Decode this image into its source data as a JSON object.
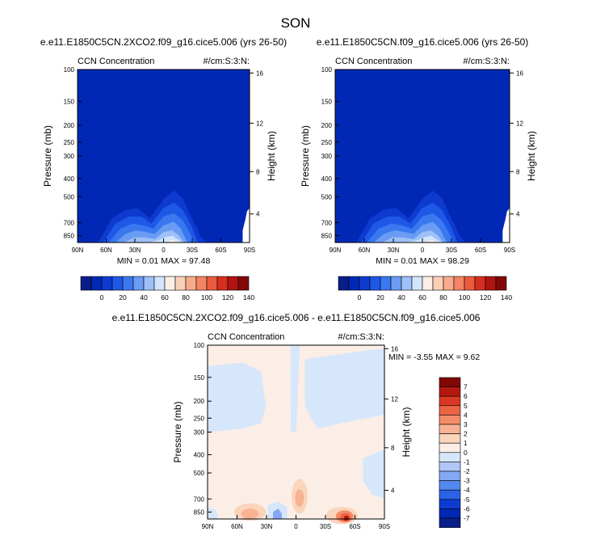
{
  "page": {
    "title": "SON"
  },
  "colors": {
    "abs_scale": [
      "#0a1e8a",
      "#0028b4",
      "#0e3ad0",
      "#1e58e6",
      "#3a78f0",
      "#6a9cf4",
      "#9ec0f8",
      "#d2e4fb",
      "#fbeee6",
      "#fbd0b8",
      "#f8ab8c",
      "#f48464",
      "#ec5a3e",
      "#d62e20",
      "#b01410",
      "#820808"
    ],
    "diff_scale": [
      "#0a1e8a",
      "#0028b4",
      "#0e3ad0",
      "#2a62e8",
      "#5488f0",
      "#84a8f4",
      "#b0c8f8",
      "#d6e6fb",
      "#fbeee6",
      "#fbd4bc",
      "#f8b294",
      "#f48c6a",
      "#ec6444",
      "#d83824",
      "#b41810",
      "#820808"
    ]
  },
  "chart_data": [
    {
      "type": "heatmap",
      "title": "e.e11.E1850C5CN.2XCO2.f09_g16.cice5.006 (yrs 26-50)",
      "left_label": "CCN Concentration",
      "right_label": "#/cm:S:3:N:",
      "ylabel": "Pressure (mb)",
      "y2label": "Height (km)",
      "x_ticks": [
        "90N",
        "60N",
        "30N",
        "0",
        "30S",
        "60S",
        "90S"
      ],
      "y_ticks": [
        "100",
        "150",
        "200",
        "250",
        "300",
        "400",
        "500",
        "700",
        "850"
      ],
      "y2_ticks": [
        "16",
        "12",
        "8",
        "4"
      ],
      "stats": "MIN =  0.01  MAX = 97.48",
      "levels": [
        "0",
        "20",
        "40",
        "60",
        "80",
        "100",
        "120",
        "140"
      ]
    },
    {
      "type": "heatmap",
      "title": "e.e11.E1850C5CN.f09_g16.cice5.006 (yrs 26-50)",
      "left_label": "CCN Concentration",
      "right_label": "#/cm:S:3:N:",
      "ylabel": "Pressure (mb)",
      "y2label": "Height (km)",
      "x_ticks": [
        "90N",
        "60N",
        "30N",
        "0",
        "30S",
        "60S",
        "90S"
      ],
      "y_ticks": [
        "100",
        "150",
        "200",
        "250",
        "300",
        "400",
        "500",
        "700",
        "850"
      ],
      "y2_ticks": [
        "16",
        "12",
        "8",
        "4"
      ],
      "stats": "MIN =  0.01  MAX = 98.29",
      "levels": [
        "0",
        "20",
        "40",
        "60",
        "80",
        "100",
        "120",
        "140"
      ]
    },
    {
      "type": "heatmap",
      "title": "e.e11.E1850C5CN.2XCO2.f09_g16.cice5.006 - e.e11.E1850C5CN.f09_g16.cice5.006",
      "left_label": "CCN Concentration",
      "right_label": "#/cm:S:3:N:",
      "ylabel": "Pressure (mb)",
      "y2label": "Height (km)",
      "x_ticks": [
        "90N",
        "60N",
        "30N",
        "0",
        "30S",
        "60S",
        "90S"
      ],
      "y_ticks": [
        "100",
        "150",
        "200",
        "250",
        "300",
        "400",
        "500",
        "700",
        "850"
      ],
      "y2_ticks": [
        "16",
        "12",
        "8",
        "4"
      ],
      "stats": "MIN =  -3.55  MAX =  9.62",
      "levels": [
        "7",
        "6",
        "5",
        "4",
        "3",
        "2",
        "1",
        "0",
        "-1",
        "-2",
        "-3",
        "-4",
        "-5",
        "-6",
        "-7"
      ]
    }
  ]
}
